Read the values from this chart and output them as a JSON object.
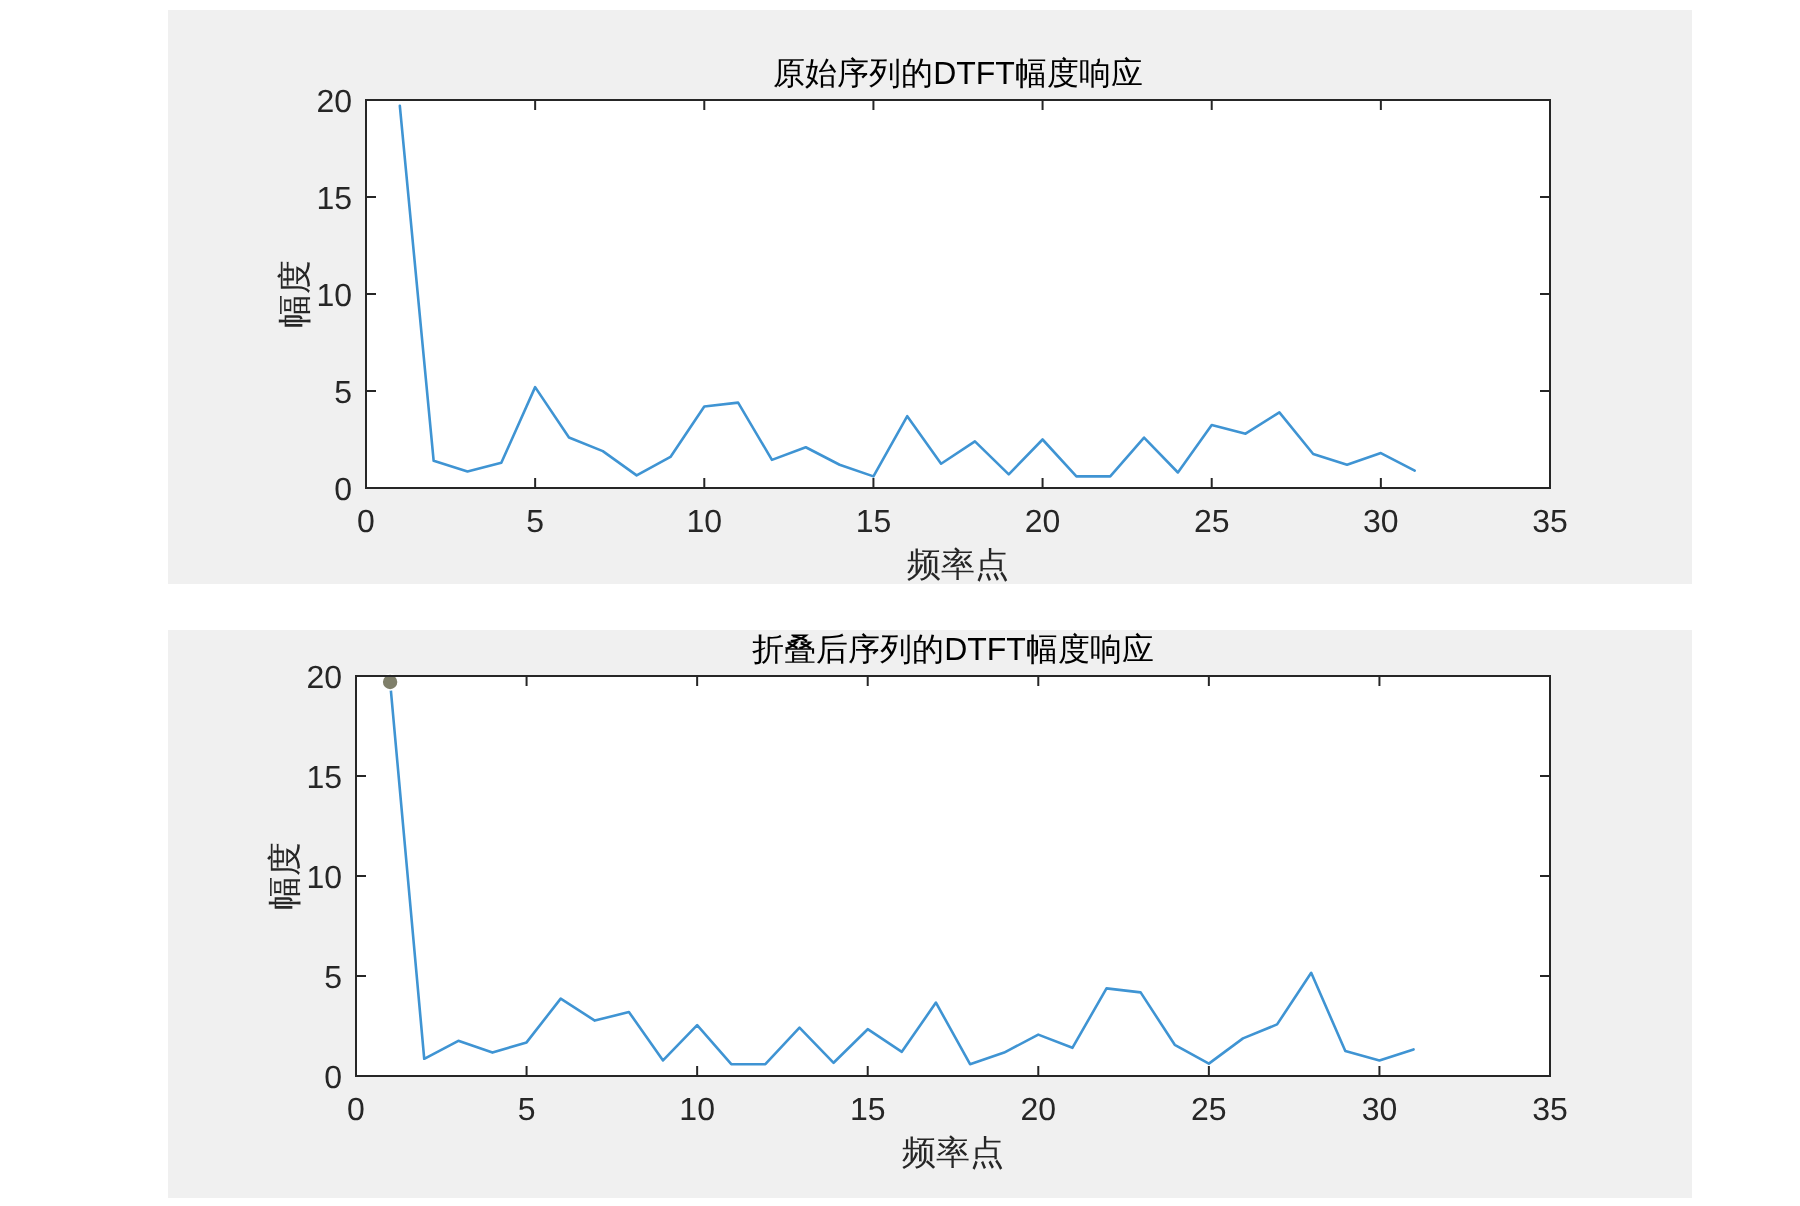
{
  "chart_data": [
    {
      "type": "line",
      "title": "原始序列的DTFT幅度响应",
      "xlabel": "频率点",
      "ylabel": "幅度",
      "xlim": [
        0,
        35
      ],
      "xticks": [
        0,
        5,
        10,
        15,
        20,
        25,
        30,
        35
      ],
      "ylim": [
        0,
        20
      ],
      "yticks": [
        0,
        5,
        10,
        15,
        20
      ],
      "grid": false,
      "marker": "none",
      "series": [
        {
          "color": "#3f94d3",
          "x": [
            1,
            2,
            3,
            4,
            5,
            6,
            7,
            8,
            9,
            10,
            11,
            12,
            13,
            14,
            15,
            16,
            17,
            18,
            19,
            20,
            21,
            22,
            23,
            24,
            25,
            26,
            27,
            28,
            29,
            30,
            31
          ],
          "values": [
            19.7,
            1.4,
            0.85,
            1.3,
            5.2,
            2.6,
            1.9,
            0.65,
            1.6,
            4.2,
            4.4,
            1.45,
            2.1,
            1.2,
            0.6,
            3.7,
            1.25,
            2.4,
            0.7,
            2.5,
            0.6,
            0.6,
            2.6,
            0.8,
            3.25,
            2.8,
            3.9,
            1.75,
            1.2,
            1.8,
            0.9
          ]
        }
      ]
    },
    {
      "type": "line",
      "title": "折叠后序列的DTFT幅度响应",
      "xlabel": "频率点",
      "ylabel": "幅度",
      "xlim": [
        0,
        35
      ],
      "xticks": [
        0,
        5,
        10,
        15,
        20,
        25,
        30,
        35
      ],
      "ylim": [
        0,
        20
      ],
      "yticks": [
        0,
        5,
        10,
        15,
        20
      ],
      "grid": false,
      "marker": "none",
      "series": [
        {
          "color": "#3f94d3",
          "x": [
            1,
            2,
            3,
            4,
            5,
            6,
            7,
            8,
            9,
            10,
            11,
            12,
            13,
            14,
            15,
            16,
            17,
            18,
            19,
            20,
            21,
            22,
            23,
            24,
            25,
            26,
            27,
            28,
            29,
            30,
            31
          ],
          "values": [
            19.7,
            0.86,
            1.76,
            1.17,
            1.68,
            3.87,
            2.77,
            3.2,
            0.78,
            2.54,
            0.59,
            0.59,
            2.42,
            0.66,
            2.34,
            1.21,
            3.67,
            0.59,
            1.17,
            2.07,
            1.41,
            4.38,
            4.18,
            1.56,
            0.62,
            1.88,
            2.58,
            5.16,
            1.25,
            0.78,
            1.33
          ]
        },
        {
          "type": "scatter",
          "marker": "circle",
          "color": "#7f7f6a",
          "x": [
            1
          ],
          "values": [
            19.7
          ]
        }
      ]
    }
  ]
}
